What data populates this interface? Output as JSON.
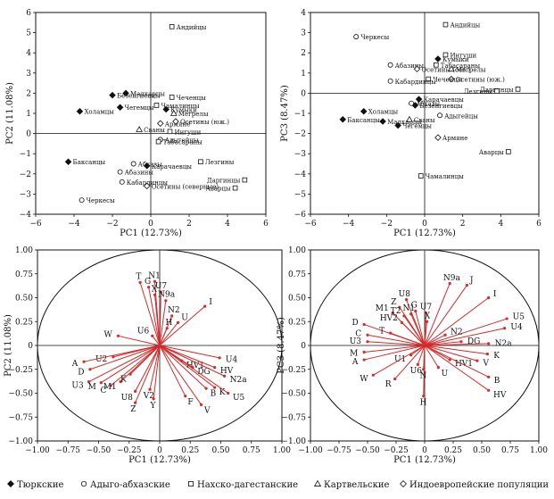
{
  "chart_data": [
    {
      "id": "scores_pc1_pc2",
      "type": "scatter",
      "xlabel": "PC1 (12.73%)",
      "ylabel": "PC2 (11.08%)",
      "xlim": [
        -6,
        6
      ],
      "ylim": [
        -4,
        6
      ],
      "xticks": [
        -6,
        -4,
        -2,
        0,
        2,
        4,
        6
      ],
      "yticks": [
        -4,
        -3,
        -2,
        -1,
        0,
        1,
        2,
        3,
        4,
        5,
        6
      ],
      "points": [
        {
          "label": "Андийцы",
          "x": 1.1,
          "y": 5.3,
          "group": "nakh"
        },
        {
          "label": "Малкарцы",
          "x": -1.3,
          "y": 2.0,
          "group": "turkic"
        },
        {
          "label": "Безенгиевцы",
          "x": -2.0,
          "y": 1.9,
          "group": "turkic"
        },
        {
          "label": "Чегемцы",
          "x": -1.6,
          "y": 1.3,
          "group": "turkic"
        },
        {
          "label": "Холамцы",
          "x": -3.7,
          "y": 1.1,
          "group": "turkic"
        },
        {
          "label": "Чеченцы",
          "x": 1.1,
          "y": 1.8,
          "group": "nakh"
        },
        {
          "label": "Чамалинцы",
          "x": 0.3,
          "y": 1.4,
          "group": "nakh"
        },
        {
          "label": "Кумыки",
          "x": 0.8,
          "y": 1.2,
          "group": "turkic"
        },
        {
          "label": "Мегрелы",
          "x": 1.2,
          "y": 1.0,
          "group": "kartvelian"
        },
        {
          "label": "Осетины (юж.)",
          "x": 1.3,
          "y": 0.6,
          "group": "indoeuropean"
        },
        {
          "label": "Армяне",
          "x": 0.5,
          "y": 0.5,
          "group": "indoeuropean"
        },
        {
          "label": "Сваны",
          "x": -0.6,
          "y": 0.2,
          "group": "kartvelian"
        },
        {
          "label": "Ингуши",
          "x": 1.0,
          "y": 0.1,
          "group": "nakh"
        },
        {
          "label": "Адыгейцы",
          "x": 0.5,
          "y": -0.3,
          "group": "adyghe"
        },
        {
          "label": "Табасараны",
          "x": 0.4,
          "y": -0.4,
          "group": "nakh"
        },
        {
          "label": "Баксанцы",
          "x": -4.3,
          "y": -1.4,
          "group": "turkic"
        },
        {
          "label": "Абхазы",
          "x": -0.9,
          "y": -1.5,
          "group": "adyghe"
        },
        {
          "label": "Карачаевцы",
          "x": -0.2,
          "y": -1.6,
          "group": "turkic"
        },
        {
          "label": "Лезгины",
          "x": 2.6,
          "y": -1.4,
          "group": "nakh"
        },
        {
          "label": "Абазины",
          "x": -1.6,
          "y": -1.9,
          "group": "adyghe"
        },
        {
          "label": "Кабардинцы",
          "x": -1.5,
          "y": -2.4,
          "group": "adyghe"
        },
        {
          "label": "Осетины (северные)",
          "x": -0.2,
          "y": -2.6,
          "group": "indoeuropean"
        },
        {
          "label": "Даргинцы",
          "x": 4.9,
          "y": -2.3,
          "group": "nakh"
        },
        {
          "label": "Аварцы",
          "x": 4.4,
          "y": -2.7,
          "group": "nakh"
        },
        {
          "label": "Черкесы",
          "x": -3.6,
          "y": -3.3,
          "group": "adyghe"
        }
      ]
    },
    {
      "id": "scores_pc1_pc3",
      "type": "scatter",
      "xlabel": "PC1 (12.73%)",
      "ylabel": "PC3 (8.47%)",
      "xlim": [
        -6,
        6
      ],
      "ylim": [
        -6,
        4
      ],
      "xticks": [
        -6,
        -4,
        -2,
        0,
        2,
        4,
        6
      ],
      "yticks": [
        -6,
        -5,
        -4,
        -3,
        -2,
        -1,
        0,
        1,
        2,
        3,
        4
      ],
      "points": [
        {
          "label": "Андийцы",
          "x": 1.1,
          "y": 3.4,
          "group": "nakh"
        },
        {
          "label": "Черкесы",
          "x": -3.6,
          "y": 2.8,
          "group": "adyghe"
        },
        {
          "label": "Ингуши",
          "x": 1.1,
          "y": 1.9,
          "group": "nakh"
        },
        {
          "label": "Кумыки",
          "x": 0.7,
          "y": 1.7,
          "group": "turkic"
        },
        {
          "label": "Табасараны",
          "x": 0.6,
          "y": 1.4,
          "group": "nakh"
        },
        {
          "label": "Абазины",
          "x": -1.8,
          "y": 1.4,
          "group": "adyghe"
        },
        {
          "label": "Осетины (сев.)",
          "x": -0.4,
          "y": 1.2,
          "group": "indoeuropean"
        },
        {
          "label": "Мегрелы",
          "x": 1.4,
          "y": 1.2,
          "group": "kartvelian"
        },
        {
          "label": "Осетины (юж.)",
          "x": 1.4,
          "y": 0.7,
          "group": "indoeuropean"
        },
        {
          "label": "Чеченцы",
          "x": 0.2,
          "y": 0.7,
          "group": "nakh"
        },
        {
          "label": "Кабардинцы",
          "x": -1.8,
          "y": 0.6,
          "group": "adyghe"
        },
        {
          "label": "Даргинцы",
          "x": 4.9,
          "y": 0.2,
          "group": "nakh"
        },
        {
          "label": "Лезгины",
          "x": 3.8,
          "y": 0.1,
          "group": "nakh"
        },
        {
          "label": "Карачаевцы",
          "x": -0.3,
          "y": -0.3,
          "group": "turkic"
        },
        {
          "label": "Безенгиевцы",
          "x": -0.5,
          "y": -0.6,
          "group": "turkic"
        },
        {
          "label": "Абхазы",
          "x": -0.7,
          "y": -0.5,
          "group": "adyghe"
        },
        {
          "label": "Холамцы",
          "x": -3.2,
          "y": -0.9,
          "group": "turkic"
        },
        {
          "label": "Адыгейцы",
          "x": 0.8,
          "y": -1.1,
          "group": "adyghe"
        },
        {
          "label": "Малкарцы",
          "x": -2.2,
          "y": -1.4,
          "group": "turkic"
        },
        {
          "label": "Сваны",
          "x": -0.8,
          "y": -1.3,
          "group": "kartvelian"
        },
        {
          "label": "Баксанцы",
          "x": -4.3,
          "y": -1.3,
          "group": "turkic"
        },
        {
          "label": "Чегемцы",
          "x": -1.4,
          "y": -1.6,
          "group": "turkic"
        },
        {
          "label": "Армяне",
          "x": 0.7,
          "y": -2.2,
          "group": "indoeuropean"
        },
        {
          "label": "Аварцы",
          "x": 4.4,
          "y": -2.9,
          "group": "nakh"
        },
        {
          "label": "Чамалинцы",
          "x": -0.2,
          "y": -4.1,
          "group": "nakh"
        }
      ]
    },
    {
      "id": "loadings_pc1_pc2",
      "type": "scatter",
      "style": "loading-vectors",
      "xlabel": "PC1 (12.73%)",
      "ylabel": "PC2 (11.08%)",
      "xlim": [
        -1.0,
        1.0
      ],
      "ylim": [
        -1.0,
        1.0
      ],
      "xticks": [
        -1.0,
        -0.75,
        -0.5,
        -0.25,
        0,
        0.25,
        0.5,
        0.75,
        1.0
      ],
      "yticks": [
        -1.0,
        -0.75,
        -0.5,
        -0.25,
        0,
        0.25,
        0.5,
        0.75,
        1.0
      ],
      "xticklabels": [
        "−1.00",
        "−0.75",
        "−0.50",
        "−0.25",
        "0",
        "0.25",
        "0.50",
        "0.75",
        "1.00"
      ],
      "yticklabels": [
        "−1.00",
        "−0.75",
        "−0.50",
        "−0.25",
        "0",
        "0.25",
        "0.50",
        "0.75",
        "1.00"
      ],
      "vectors": [
        {
          "label": "T",
          "x": -0.16,
          "y": 0.66
        },
        {
          "label": "N1",
          "x": -0.04,
          "y": 0.67
        },
        {
          "label": "G",
          "x": -0.09,
          "y": 0.61
        },
        {
          "label": "U7",
          "x": 0.01,
          "y": 0.56
        },
        {
          "label": "X",
          "x": -0.04,
          "y": 0.53
        },
        {
          "label": "N9a",
          "x": 0.05,
          "y": 0.47
        },
        {
          "label": "I",
          "x": 0.37,
          "y": 0.41
        },
        {
          "label": "N2",
          "x": 0.1,
          "y": 0.31
        },
        {
          "label": "U",
          "x": 0.15,
          "y": 0.24
        },
        {
          "label": "H",
          "x": 0.06,
          "y": 0.18
        },
        {
          "label": "W",
          "x": -0.34,
          "y": 0.1
        },
        {
          "label": "U6",
          "x": -0.06,
          "y": 0.1
        },
        {
          "label": "U2",
          "x": -0.38,
          "y": -0.12
        },
        {
          "label": "A",
          "x": -0.62,
          "y": -0.17
        },
        {
          "label": "D",
          "x": -0.57,
          "y": -0.25
        },
        {
          "label": "U3",
          "x": -0.58,
          "y": -0.38
        },
        {
          "label": "M",
          "x": -0.48,
          "y": -0.39
        },
        {
          "label": "C",
          "x": -0.4,
          "y": -0.42
        },
        {
          "label": "M1",
          "x": -0.32,
          "y": -0.38
        },
        {
          "label": "K",
          "x": -0.24,
          "y": -0.3
        },
        {
          "label": "U8",
          "x": -0.2,
          "y": -0.48
        },
        {
          "label": "V2",
          "x": -0.08,
          "y": -0.46
        },
        {
          "label": "Z",
          "x": -0.2,
          "y": -0.6
        },
        {
          "label": "Y",
          "x": -0.05,
          "y": -0.56
        },
        {
          "label": "HV1",
          "x": 0.18,
          "y": -0.16
        },
        {
          "label": "U4",
          "x": 0.49,
          "y": -0.13
        },
        {
          "label": "DG",
          "x": 0.27,
          "y": -0.23
        },
        {
          "label": "HV",
          "x": 0.45,
          "y": -0.23
        },
        {
          "label": "N2a",
          "x": 0.53,
          "y": -0.32
        },
        {
          "label": "K",
          "x": 0.45,
          "y": -0.44
        },
        {
          "label": "F",
          "x": 0.21,
          "y": -0.53
        },
        {
          "label": "B",
          "x": 0.38,
          "y": -0.45
        },
        {
          "label": "V",
          "x": 0.34,
          "y": -0.62
        },
        {
          "label": "U5",
          "x": 0.56,
          "y": -0.5
        }
      ]
    },
    {
      "id": "loadings_pc1_pc3",
      "type": "scatter",
      "style": "loading-vectors",
      "xlabel": "PC1 (12.73%)",
      "ylabel": "PC3 (8.47%)",
      "xlim": [
        -1.0,
        1.0
      ],
      "ylim": [
        -1.0,
        1.0
      ],
      "xticks": [
        -1.0,
        -0.75,
        -0.5,
        -0.25,
        0,
        0.25,
        0.5,
        0.75,
        1.0
      ],
      "yticks": [
        -1.0,
        -0.75,
        -0.5,
        -0.25,
        0,
        0.25,
        0.5,
        0.75,
        1.0
      ],
      "xticklabels": [
        "−1.00",
        "−0.75",
        "−0.50",
        "−0.25",
        "0",
        "0.25",
        "0.50",
        "0.75",
        "1.00"
      ],
      "yticklabels": [
        "−1.00",
        "−0.75",
        "−0.50",
        "−0.25",
        "0",
        "0.25",
        "0.50",
        "0.75",
        "1.00"
      ],
      "vectors": [
        {
          "label": "N9a",
          "x": 0.22,
          "y": 0.65
        },
        {
          "label": "J",
          "x": 0.37,
          "y": 0.63
        },
        {
          "label": "I",
          "x": 0.56,
          "y": 0.5
        },
        {
          "label": "U8",
          "x": -0.16,
          "y": 0.48
        },
        {
          "label": "Z",
          "x": -0.22,
          "y": 0.4
        },
        {
          "label": "G",
          "x": -0.08,
          "y": 0.36
        },
        {
          "label": "U7",
          "x": 0.01,
          "y": 0.34
        },
        {
          "label": "M1",
          "x": -0.28,
          "y": 0.34
        },
        {
          "label": "N1",
          "x": -0.12,
          "y": 0.33
        },
        {
          "label": "T2",
          "x": -0.18,
          "y": 0.31
        },
        {
          "label": "HV2",
          "x": -0.2,
          "y": 0.24
        },
        {
          "label": "X",
          "x": 0.02,
          "y": 0.25
        },
        {
          "label": "U5",
          "x": 0.72,
          "y": 0.28
        },
        {
          "label": "U4",
          "x": 0.7,
          "y": 0.18
        },
        {
          "label": "D",
          "x": -0.53,
          "y": 0.22
        },
        {
          "label": "C",
          "x": -0.5,
          "y": 0.11
        },
        {
          "label": "U3",
          "x": -0.5,
          "y": 0.04
        },
        {
          "label": "T",
          "x": -0.3,
          "y": 0.13
        },
        {
          "label": "N2",
          "x": 0.18,
          "y": 0.11
        },
        {
          "label": "DG",
          "x": 0.32,
          "y": 0.04
        },
        {
          "label": "N2a",
          "x": 0.56,
          "y": 0.02
        },
        {
          "label": "M",
          "x": -0.53,
          "y": -0.07
        },
        {
          "label": "A",
          "x": -0.53,
          "y": -0.15
        },
        {
          "label": "U1",
          "x": -0.12,
          "y": -0.1
        },
        {
          "label": "K",
          "x": 0.55,
          "y": -0.09
        },
        {
          "label": "V",
          "x": 0.46,
          "y": -0.16
        },
        {
          "label": "HV1",
          "x": 0.22,
          "y": -0.15
        },
        {
          "label": "U6",
          "x": -0.06,
          "y": -0.2
        },
        {
          "label": "U",
          "x": 0.12,
          "y": -0.23
        },
        {
          "label": "N",
          "x": -0.01,
          "y": -0.25
        },
        {
          "label": "W",
          "x": -0.45,
          "y": -0.31
        },
        {
          "label": "R",
          "x": -0.26,
          "y": -0.35
        },
        {
          "label": "B",
          "x": 0.56,
          "y": -0.33
        },
        {
          "label": "H",
          "x": -0.01,
          "y": -0.53
        },
        {
          "label": "HV",
          "x": 0.56,
          "y": -0.47
        }
      ]
    }
  ],
  "legend": {
    "items": [
      {
        "label": "Тюркские",
        "group": "turkic",
        "marker": "diamond-filled"
      },
      {
        "label": "Адыго-абхазские",
        "group": "adyghe",
        "marker": "circle-open"
      },
      {
        "label": "Нахско-дагестанские",
        "group": "nakh",
        "marker": "square-open"
      },
      {
        "label": "Картвельские",
        "group": "kartvelian",
        "marker": "triangle-open"
      },
      {
        "label": "Индоевропейские популяции",
        "group": "indoeuropean",
        "marker": "diamond-open"
      }
    ]
  },
  "colors": {
    "vector": "#d42a2a",
    "axis": "#111111",
    "marker": "#111111"
  }
}
